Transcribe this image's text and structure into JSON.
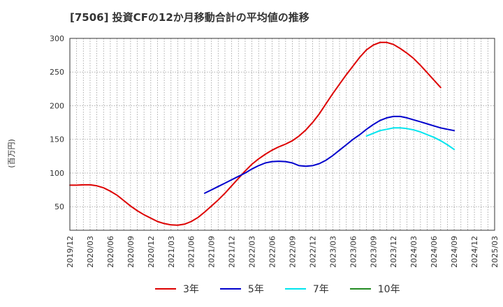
{
  "chart_data": {
    "type": "line",
    "title": "[7506]  投資CFの12か月移動合計の平均値の推移",
    "ylabel": "(百万円)",
    "xlabel": "",
    "ylim": [
      15,
      300
    ],
    "yticks": [
      50,
      100,
      150,
      200,
      250,
      300
    ],
    "xticks": [
      "2019/12",
      "2020/03",
      "2020/06",
      "2020/09",
      "2020/12",
      "2021/03",
      "2021/06",
      "2021/09",
      "2021/12",
      "2022/03",
      "2022/06",
      "2022/09",
      "2022/12",
      "2023/03",
      "2023/06",
      "2023/09",
      "2023/12",
      "2024/03",
      "2024/06",
      "2024/09",
      "2024/12",
      "2025/03"
    ],
    "grid": true,
    "legend_position": "bottom",
    "series": [
      {
        "name": "3年",
        "color": "#dd0000",
        "points": [
          [
            "2019/12",
            82
          ],
          [
            "2020/01",
            82
          ],
          [
            "2020/02",
            82.5
          ],
          [
            "2020/03",
            82.5
          ],
          [
            "2020/04",
            81
          ],
          [
            "2020/05",
            78
          ],
          [
            "2020/06",
            73
          ],
          [
            "2020/07",
            67
          ],
          [
            "2020/08",
            59
          ],
          [
            "2020/09",
            51
          ],
          [
            "2020/10",
            44
          ],
          [
            "2020/11",
            38
          ],
          [
            "2020/12",
            33
          ],
          [
            "2021/01",
            28
          ],
          [
            "2021/02",
            25
          ],
          [
            "2021/03",
            23
          ],
          [
            "2021/04",
            22.5
          ],
          [
            "2021/05",
            24
          ],
          [
            "2021/06",
            28
          ],
          [
            "2021/07",
            34
          ],
          [
            "2021/08",
            42
          ],
          [
            "2021/09",
            51
          ],
          [
            "2021/10",
            60
          ],
          [
            "2021/11",
            70
          ],
          [
            "2021/12",
            81
          ],
          [
            "2022/01",
            92
          ],
          [
            "2022/02",
            103
          ],
          [
            "2022/03",
            113
          ],
          [
            "2022/04",
            121
          ],
          [
            "2022/05",
            128
          ],
          [
            "2022/06",
            134
          ],
          [
            "2022/07",
            139
          ],
          [
            "2022/08",
            143
          ],
          [
            "2022/09",
            148
          ],
          [
            "2022/10",
            155
          ],
          [
            "2022/11",
            164
          ],
          [
            "2022/12",
            175
          ],
          [
            "2023/01",
            188
          ],
          [
            "2023/02",
            203
          ],
          [
            "2023/03",
            218
          ],
          [
            "2023/04",
            232
          ],
          [
            "2023/05",
            246
          ],
          [
            "2023/06",
            259
          ],
          [
            "2023/07",
            272
          ],
          [
            "2023/08",
            283
          ],
          [
            "2023/09",
            290
          ],
          [
            "2023/10",
            294
          ],
          [
            "2023/11",
            294
          ],
          [
            "2023/12",
            291
          ],
          [
            "2024/01",
            285
          ],
          [
            "2024/02",
            278
          ],
          [
            "2024/03",
            270
          ],
          [
            "2024/04",
            260
          ],
          [
            "2024/05",
            249
          ],
          [
            "2024/06",
            238
          ],
          [
            "2024/07",
            227
          ]
        ]
      },
      {
        "name": "5年",
        "color": "#0000cc",
        "points": [
          [
            "2021/08",
            70
          ],
          [
            "2021/09",
            75
          ],
          [
            "2021/10",
            80
          ],
          [
            "2021/11",
            85
          ],
          [
            "2021/12",
            90
          ],
          [
            "2022/01",
            95
          ],
          [
            "2022/02",
            100
          ],
          [
            "2022/03",
            106
          ],
          [
            "2022/04",
            111
          ],
          [
            "2022/05",
            115
          ],
          [
            "2022/06",
            117
          ],
          [
            "2022/07",
            117.5
          ],
          [
            "2022/08",
            117
          ],
          [
            "2022/09",
            115
          ],
          [
            "2022/10",
            111
          ],
          [
            "2022/11",
            110
          ],
          [
            "2022/12",
            111
          ],
          [
            "2023/01",
            114
          ],
          [
            "2023/02",
            119
          ],
          [
            "2023/03",
            126
          ],
          [
            "2023/04",
            134
          ],
          [
            "2023/05",
            142
          ],
          [
            "2023/06",
            150
          ],
          [
            "2023/07",
            157
          ],
          [
            "2023/08",
            165
          ],
          [
            "2023/09",
            172
          ],
          [
            "2023/10",
            178
          ],
          [
            "2023/11",
            182
          ],
          [
            "2023/12",
            184
          ],
          [
            "2024/01",
            184
          ],
          [
            "2024/02",
            182
          ],
          [
            "2024/03",
            179
          ],
          [
            "2024/04",
            176
          ],
          [
            "2024/05",
            173
          ],
          [
            "2024/06",
            170
          ],
          [
            "2024/07",
            167
          ],
          [
            "2024/08",
            165
          ],
          [
            "2024/09",
            163
          ]
        ]
      },
      {
        "name": "7年",
        "color": "#00e5ee",
        "points": [
          [
            "2023/08",
            155
          ],
          [
            "2023/09",
            159
          ],
          [
            "2023/10",
            163
          ],
          [
            "2023/11",
            165
          ],
          [
            "2023/12",
            167
          ],
          [
            "2024/01",
            167
          ],
          [
            "2024/02",
            166
          ],
          [
            "2024/03",
            164
          ],
          [
            "2024/04",
            161
          ],
          [
            "2024/05",
            157
          ],
          [
            "2024/06",
            153
          ],
          [
            "2024/07",
            148
          ],
          [
            "2024/08",
            142
          ],
          [
            "2024/09",
            135
          ]
        ]
      },
      {
        "name": "10年",
        "color": "#228b22",
        "points": []
      }
    ]
  }
}
